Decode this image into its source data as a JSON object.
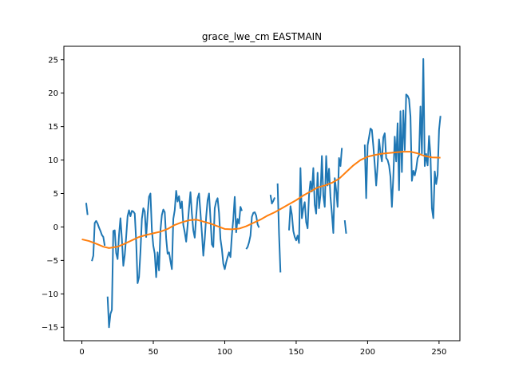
{
  "chart_data": {
    "type": "line",
    "title": "grace_lwe_cm EASTMAIN",
    "xlabel": "",
    "ylabel": "",
    "xlim": [
      -12.6,
      264.6
    ],
    "ylim": [
      -17,
      27
    ],
    "xticks": [
      0,
      50,
      100,
      150,
      200,
      250
    ],
    "yticks": [
      -15,
      -10,
      -5,
      0,
      5,
      10,
      15,
      20,
      25
    ],
    "xtick_labels": [
      "0",
      "50",
      "100",
      "150",
      "200",
      "250"
    ],
    "ytick_labels": [
      "−15",
      "−10",
      "−5",
      "0",
      "5",
      "10",
      "15",
      "20",
      "25"
    ],
    "grid": false,
    "legend": "none",
    "series": [
      {
        "color": "#1f77b4",
        "style": "raw",
        "points": [
          [
            3,
            3.6
          ],
          [
            4,
            1.8
          ],
          [
            5,
            null
          ],
          [
            6,
            null
          ],
          [
            7,
            -5.1
          ],
          [
            8,
            -4.3
          ],
          [
            9,
            0.6
          ],
          [
            10,
            0.9
          ],
          [
            11,
            0.5
          ],
          [
            12,
            -0.1
          ],
          [
            13,
            -0.6
          ],
          [
            14,
            -1.2
          ],
          [
            15,
            -1.5
          ],
          [
            16,
            -2.8
          ],
          [
            17,
            null
          ],
          [
            18,
            -10.4
          ],
          [
            19,
            -15.0
          ],
          [
            20,
            -13.0
          ],
          [
            21,
            -12.4
          ],
          [
            22,
            -0.6
          ],
          [
            23,
            -0.5
          ],
          [
            24,
            -3.9
          ],
          [
            25,
            -4.8
          ],
          [
            26,
            -1.2
          ],
          [
            27,
            1.3
          ],
          [
            28,
            -1.8
          ],
          [
            29,
            -5.8
          ],
          [
            30,
            -4.2
          ],
          [
            31,
            -1.5
          ],
          [
            32,
            1.6
          ],
          [
            33,
            2.5
          ],
          [
            34,
            1.6
          ],
          [
            35,
            2.4
          ],
          [
            36,
            2.3
          ],
          [
            37,
            2.0
          ],
          [
            38,
            -2.1
          ],
          [
            39,
            -8.4
          ],
          [
            40,
            -7.5
          ],
          [
            41,
            -3.7
          ],
          [
            42,
            1.2
          ],
          [
            43,
            2.8
          ],
          [
            44,
            2.3
          ],
          [
            45,
            -1.5
          ],
          [
            46,
            1.8
          ],
          [
            47,
            4.5
          ],
          [
            48,
            5.0
          ],
          [
            49,
            -0.5
          ],
          [
            50,
            -2.8
          ],
          [
            51,
            -4.0
          ],
          [
            52,
            -7.5
          ],
          [
            53,
            -3.8
          ],
          [
            54,
            -6.5
          ],
          [
            55,
            -0.5
          ],
          [
            56,
            1.8
          ],
          [
            57,
            2.6
          ],
          [
            58,
            2.2
          ],
          [
            59,
            -1.7
          ],
          [
            60,
            -4.0
          ],
          [
            61,
            -3.8
          ],
          [
            62,
            -5.1
          ],
          [
            63,
            -6.3
          ],
          [
            64,
            1.2
          ],
          [
            65,
            2.5
          ],
          [
            66,
            5.4
          ],
          [
            67,
            3.8
          ],
          [
            68,
            4.6
          ],
          [
            69,
            2.8
          ],
          [
            70,
            3.8
          ],
          [
            71,
            0.3
          ],
          [
            72,
            -0.8
          ],
          [
            73,
            -2.2
          ],
          [
            74,
            0.2
          ],
          [
            75,
            2.8
          ],
          [
            76,
            5.2
          ],
          [
            77,
            2.0
          ],
          [
            78,
            -0.5
          ],
          [
            79,
            -1.6
          ],
          [
            80,
            1.6
          ],
          [
            81,
            4.3
          ],
          [
            82,
            5.0
          ],
          [
            83,
            2.1
          ],
          [
            84,
            -0.9
          ],
          [
            85,
            -4.3
          ],
          [
            86,
            -1.8
          ],
          [
            87,
            1.5
          ],
          [
            88,
            4.0
          ],
          [
            89,
            5.0
          ],
          [
            90,
            1.3
          ],
          [
            91,
            -2.6
          ],
          [
            92,
            -3.0
          ],
          [
            93,
            2.8
          ],
          [
            94,
            3.8
          ],
          [
            95,
            4.3
          ],
          [
            96,
            2.1
          ],
          [
            97,
            -1.8
          ],
          [
            98,
            -3.3
          ],
          [
            99,
            -5.5
          ],
          [
            100,
            -6.3
          ],
          [
            101,
            -5.3
          ],
          [
            102,
            -4.5
          ],
          [
            103,
            -3.8
          ],
          [
            104,
            -4.5
          ],
          [
            105,
            -1.2
          ],
          [
            106,
            1.2
          ],
          [
            107,
            4.5
          ],
          [
            108,
            -0.8
          ],
          [
            109,
            1.2
          ],
          [
            110,
            0.5
          ],
          [
            111,
            3.0
          ],
          [
            112,
            2.4
          ],
          [
            113,
            null
          ],
          [
            114,
            null
          ],
          [
            115,
            -3.3
          ],
          [
            116,
            -3.0
          ],
          [
            117,
            -2.3
          ],
          [
            118,
            -1.3
          ],
          [
            119,
            1.5
          ],
          [
            120,
            2.1
          ],
          [
            121,
            2.2
          ],
          [
            122,
            1.7
          ],
          [
            123,
            0.4
          ],
          [
            124,
            -0.1
          ],
          [
            125,
            null
          ],
          [
            126,
            null
          ],
          [
            127,
            null
          ],
          [
            128,
            null
          ],
          [
            129,
            null
          ],
          [
            130,
            null
          ],
          [
            131,
            null
          ],
          [
            132,
            4.8
          ],
          [
            133,
            3.5
          ],
          [
            134,
            3.9
          ],
          [
            135,
            4.4
          ],
          [
            136,
            null
          ],
          [
            137,
            6.5
          ],
          [
            138,
            -1.0
          ],
          [
            139,
            -6.8
          ],
          [
            140,
            null
          ],
          [
            141,
            null
          ],
          [
            142,
            null
          ],
          [
            143,
            null
          ],
          [
            144,
            null
          ],
          [
            145,
            -0.5
          ],
          [
            146,
            3.1
          ],
          [
            147,
            1.8
          ],
          [
            148,
            -0.6
          ],
          [
            149,
            -1.5
          ],
          [
            150,
            -2.0
          ],
          [
            151,
            -1.3
          ],
          [
            152,
            -2.4
          ],
          [
            153,
            8.8
          ],
          [
            154,
            1.3
          ],
          [
            155,
            2.8
          ],
          [
            156,
            3.7
          ],
          [
            157,
            0.7
          ],
          [
            158,
            -0.2
          ],
          [
            159,
            4.8
          ],
          [
            160,
            6.8
          ],
          [
            161,
            5.3
          ],
          [
            162,
            8.8
          ],
          [
            163,
            3.3
          ],
          [
            164,
            2.0
          ],
          [
            165,
            8.1
          ],
          [
            166,
            2.8
          ],
          [
            167,
            4.8
          ],
          [
            168,
            10.6
          ],
          [
            169,
            4.7
          ],
          [
            170,
            3.0
          ],
          [
            171,
            10.6
          ],
          [
            172,
            6.2
          ],
          [
            173,
            8.7
          ],
          [
            174,
            4.5
          ],
          [
            175,
            2.0
          ],
          [
            176,
            -0.9
          ],
          [
            177,
            7.3
          ],
          [
            178,
            5.5
          ],
          [
            179,
            3.0
          ],
          [
            180,
            10.3
          ],
          [
            181,
            9.1
          ],
          [
            182,
            11.8
          ],
          [
            183,
            null
          ],
          [
            184,
            1.0
          ],
          [
            185,
            -1.0
          ],
          [
            186,
            null
          ],
          [
            187,
            null
          ],
          [
            188,
            null
          ],
          [
            189,
            null
          ],
          [
            190,
            null
          ],
          [
            191,
            null
          ],
          [
            192,
            null
          ],
          [
            193,
            null
          ],
          [
            194,
            null
          ],
          [
            195,
            null
          ],
          [
            196,
            null
          ],
          [
            197,
            null
          ],
          [
            198,
            12.3
          ],
          [
            199,
            4.3
          ],
          [
            200,
            12.2
          ],
          [
            201,
            13.4
          ],
          [
            202,
            14.7
          ],
          [
            203,
            14.5
          ],
          [
            204,
            12.1
          ],
          [
            205,
            9.3
          ],
          [
            206,
            6.2
          ],
          [
            207,
            9.2
          ],
          [
            208,
            13.1
          ],
          [
            209,
            11.1
          ],
          [
            210,
            9.8
          ],
          [
            211,
            13.4
          ],
          [
            212,
            14.0
          ],
          [
            213,
            10.3
          ],
          [
            214,
            10.0
          ],
          [
            215,
            9.2
          ],
          [
            216,
            7.5
          ],
          [
            217,
            3.0
          ],
          [
            218,
            7.5
          ],
          [
            219,
            13.5
          ],
          [
            220,
            9.8
          ],
          [
            221,
            15.5
          ],
          [
            222,
            5.5
          ],
          [
            223,
            17.3
          ],
          [
            224,
            8.2
          ],
          [
            225,
            17.4
          ],
          [
            226,
            11.5
          ],
          [
            227,
            19.8
          ],
          [
            228,
            19.6
          ],
          [
            229,
            19.1
          ],
          [
            230,
            16.5
          ],
          [
            231,
            6.9
          ],
          [
            232,
            8.4
          ],
          [
            233,
            7.7
          ],
          [
            234,
            8.7
          ],
          [
            235,
            10.3
          ],
          [
            236,
            10.7
          ],
          [
            237,
            18.0
          ],
          [
            238,
            11.0
          ],
          [
            239,
            25.1
          ],
          [
            240,
            9.1
          ],
          [
            241,
            10.9
          ],
          [
            242,
            9.2
          ],
          [
            243,
            13.6
          ],
          [
            244,
            10.7
          ],
          [
            245,
            2.8
          ],
          [
            246,
            1.3
          ],
          [
            247,
            8.3
          ],
          [
            248,
            6.4
          ],
          [
            249,
            7.8
          ],
          [
            250,
            14.5
          ],
          [
            251,
            16.6
          ]
        ]
      },
      {
        "color": "#ff7f0e",
        "style": "smooth",
        "points": [
          [
            0,
            -1.85
          ],
          [
            5,
            -2.1
          ],
          [
            10,
            -2.5
          ],
          [
            15,
            -2.95
          ],
          [
            19,
            -3.15
          ],
          [
            25,
            -2.95
          ],
          [
            30,
            -2.5
          ],
          [
            35,
            -2.0
          ],
          [
            40,
            -1.5
          ],
          [
            45,
            -1.2
          ],
          [
            50,
            -0.95
          ],
          [
            55,
            -0.7
          ],
          [
            60,
            -0.3
          ],
          [
            65,
            0.3
          ],
          [
            70,
            0.7
          ],
          [
            75,
            1.0
          ],
          [
            80,
            1.1
          ],
          [
            85,
            0.8
          ],
          [
            90,
            0.5
          ],
          [
            95,
            0.1
          ],
          [
            100,
            -0.3
          ],
          [
            105,
            -0.35
          ],
          [
            110,
            -0.25
          ],
          [
            115,
            0.1
          ],
          [
            120,
            0.6
          ],
          [
            125,
            1.1
          ],
          [
            130,
            1.7
          ],
          [
            135,
            2.2
          ],
          [
            140,
            2.8
          ],
          [
            145,
            3.4
          ],
          [
            150,
            4.0
          ],
          [
            155,
            4.7
          ],
          [
            160,
            5.3
          ],
          [
            165,
            5.9
          ],
          [
            170,
            6.2
          ],
          [
            175,
            6.6
          ],
          [
            180,
            7.2
          ],
          [
            185,
            8.2
          ],
          [
            190,
            9.2
          ],
          [
            195,
            10.0
          ],
          [
            200,
            10.5
          ],
          [
            205,
            10.75
          ],
          [
            210,
            10.95
          ],
          [
            215,
            11.05
          ],
          [
            220,
            11.15
          ],
          [
            225,
            11.25
          ],
          [
            230,
            11.25
          ],
          [
            235,
            11.0
          ],
          [
            240,
            10.6
          ],
          [
            245,
            10.4
          ],
          [
            251,
            10.35
          ]
        ]
      }
    ]
  }
}
